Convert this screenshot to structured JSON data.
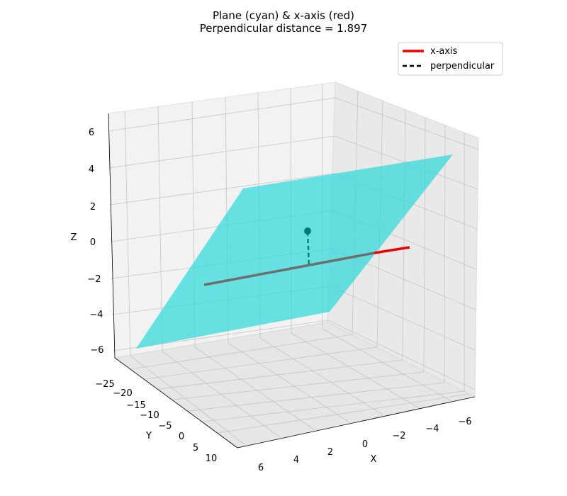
{
  "chart_data": {
    "type": "line",
    "projection": "3d",
    "title": [
      "Plane (cyan) & x-axis (red)",
      "Perpendicular distance = 1.897"
    ],
    "xlabel": "X",
    "ylabel": "Y",
    "zlabel": "Z",
    "xlim": [
      -6.5,
      6.5
    ],
    "ylim": [
      -28,
      13
    ],
    "zlim": [
      -7,
      7
    ],
    "x_ticks": [
      "6",
      "4",
      "2",
      "0",
      "−2",
      "−4",
      "−6"
    ],
    "y_ticks": [
      "−25",
      "−20",
      "−15",
      "−10",
      "−5",
      "0",
      "5",
      "10"
    ],
    "z_ticks": [
      "6",
      "4",
      "2",
      "0",
      "−2",
      "−4",
      "−6"
    ],
    "grid": true,
    "legend_position": "upper right",
    "series": [
      {
        "name": "x-axis",
        "style": "solid",
        "color": "#ee0000",
        "x": [
          6,
          -6
        ],
        "y": [
          0,
          0
        ],
        "z": [
          0,
          0
        ]
      },
      {
        "name": "perpendicular",
        "style": "dashed",
        "color": "#008080",
        "x": [
          0,
          0
        ],
        "y": [
          0,
          0
        ],
        "z": [
          0,
          1.897
        ]
      }
    ],
    "plane": {
      "color": "#00d8d8",
      "opacity": 0.6,
      "corners": [
        [
          6,
          -25,
          -6
        ],
        [
          -6,
          -25,
          -4
        ],
        [
          -6,
          10,
          6
        ],
        [
          6,
          10,
          4
        ]
      ]
    },
    "perpendicular_distance": 1.897,
    "foot_point": [
      0,
      0,
      1.897
    ]
  }
}
